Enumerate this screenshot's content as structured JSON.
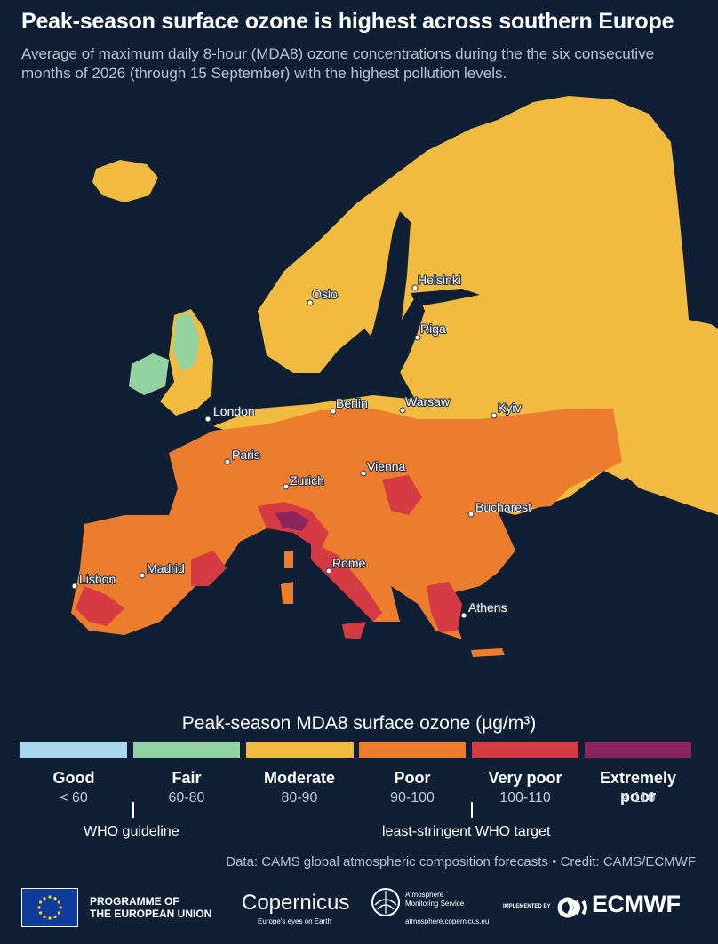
{
  "header": {
    "title": "Peak-season surface ozone is highest across southern Europe",
    "subtitle": "Average of maximum daily 8-hour (MDA8) ozone concentrations during the the six consecutive months of 2026 (through 15 September) with the highest pollution levels."
  },
  "map": {
    "cities": [
      {
        "name": "Oslo"
      },
      {
        "name": "Helsinki"
      },
      {
        "name": "Riga"
      },
      {
        "name": "London"
      },
      {
        "name": "Berlin"
      },
      {
        "name": "Warsaw"
      },
      {
        "name": "Kyiv"
      },
      {
        "name": "Paris"
      },
      {
        "name": "Zurich"
      },
      {
        "name": "Vienna"
      },
      {
        "name": "Bucharest"
      },
      {
        "name": "Madrid"
      },
      {
        "name": "Lisbon"
      },
      {
        "name": "Rome"
      },
      {
        "name": "Athens"
      }
    ],
    "colors": {
      "sea": "#0f1f36",
      "good": "#a9d8ee",
      "fair": "#93d3a2",
      "moderate": "#f1bb3f",
      "poor": "#ec7d2d",
      "very_poor": "#d63a43",
      "extremely_poor": "#8a2560"
    }
  },
  "legend": {
    "title": "Peak-season MDA8 surface ozone (µg/m³)",
    "categories": [
      {
        "name": "Good",
        "range": "< 60",
        "color": "#a9d8ee"
      },
      {
        "name": "Fair",
        "range": "60-80",
        "color": "#93d3a2"
      },
      {
        "name": "Moderate",
        "range": "80-90",
        "color": "#f1bb3f"
      },
      {
        "name": "Poor",
        "range": "90-100",
        "color": "#ec7d2d"
      },
      {
        "name": "Very poor",
        "range": "100-110",
        "color": "#d63a43"
      },
      {
        "name": "Extremely poor",
        "range": "> 110",
        "color": "#8a2560"
      }
    ],
    "who_guideline": "WHO guideline",
    "who_target": "least-stringent WHO target"
  },
  "credit": "Data: CAMS global atmospheric composition forecasts • Credit: CAMS/ECMWF",
  "footer": {
    "eu_line1": "PROGRAMME OF",
    "eu_line2": "THE EUROPEAN UNION",
    "copernicus": "Copernicus",
    "copernicus_tag": "Europe's eyes on Earth",
    "ams_line1": "Atmosphere",
    "ams_line2": "Monitoring Service",
    "ams_url": "atmosphere.copernicus.eu",
    "implemented_by": "IMPLEMENTED BY",
    "ecmwf": "ECMWF",
    "eu_flag_icon": "eu-flag-icon",
    "ams_icon": "atmosphere-globe-icon",
    "ecmwf_icon": "ecmwf-waves-icon"
  }
}
